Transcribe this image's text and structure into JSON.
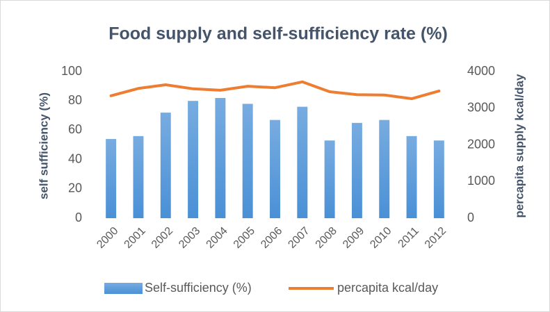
{
  "chart_data": {
    "type": "combo",
    "title": "Food supply and self-sufficiency rate (%)",
    "categories": [
      "2000",
      "2001",
      "2002",
      "2003",
      "2004",
      "2005",
      "2006",
      "2007",
      "2008",
      "2009",
      "2010",
      "2011",
      "2012"
    ],
    "series": [
      {
        "name": "Self-sufficiency (%)",
        "type": "bar",
        "color": "#4a90d6",
        "values": [
          54,
          56,
          72,
          80,
          82,
          78,
          67,
          76,
          53,
          65,
          67,
          56,
          53
        ]
      },
      {
        "name": "percapita kcal/day",
        "type": "line",
        "axis": "y2",
        "color": "#ed7d31",
        "values": [
          3340,
          3540,
          3640,
          3530,
          3490,
          3600,
          3560,
          3720,
          3450,
          3370,
          3360,
          3260,
          3470
        ]
      }
    ],
    "ylabel": "self sufficiency (%)",
    "y2label": "percapita supply kcal/day",
    "ylim": [
      0,
      100
    ],
    "yticks": [
      0,
      20,
      40,
      60,
      80,
      100
    ],
    "y2lim": [
      0,
      4000
    ],
    "y2ticks": [
      0,
      1000,
      2000,
      3000,
      4000
    ],
    "legend": "bottom"
  }
}
